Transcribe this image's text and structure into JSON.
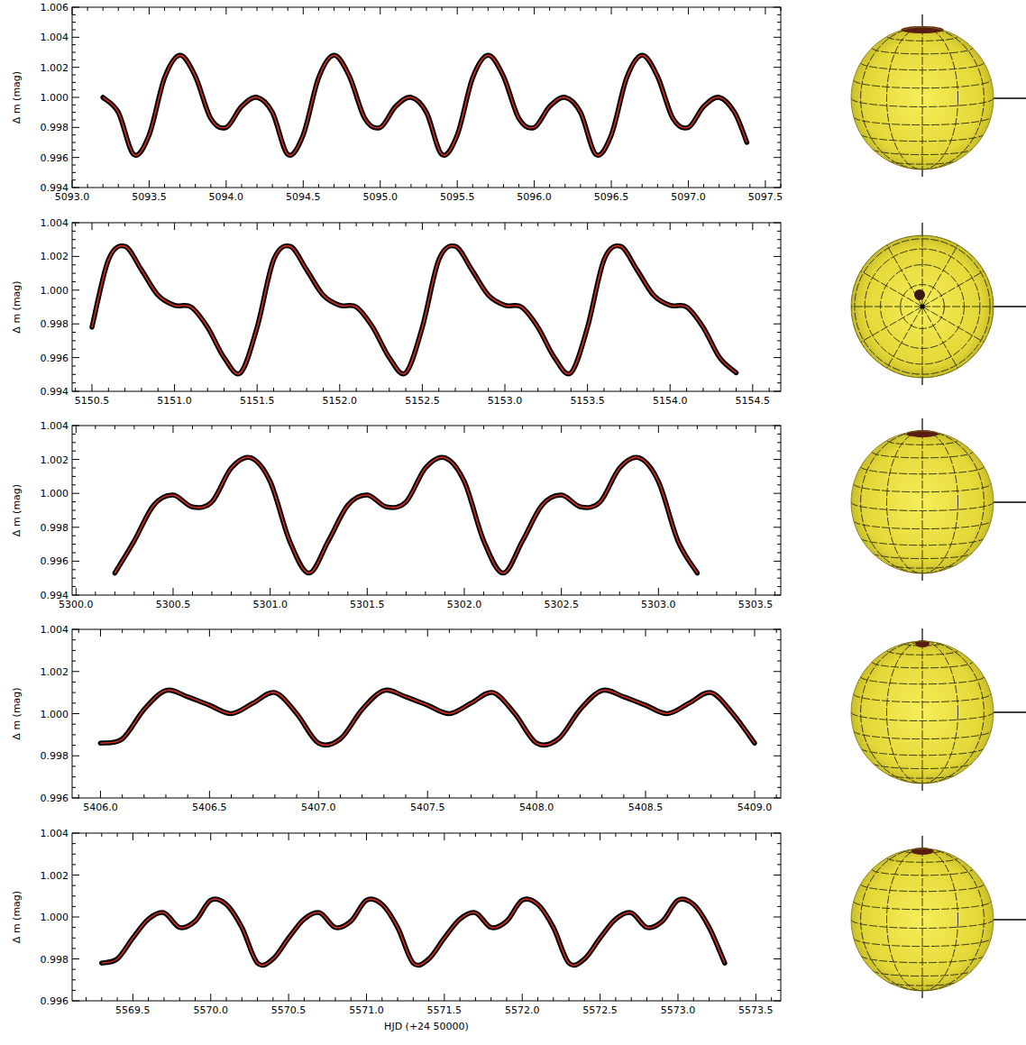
{
  "chart_data": [
    {
      "type": "line",
      "y_label": "Δ m (mag)",
      "xlim": [
        5093.0,
        5097.6
      ],
      "ylim": [
        0.994,
        1.006
      ],
      "xticks": [
        {
          "value": 5093.0,
          "label": "5093.0"
        },
        5093.5,
        {
          "value": 5094.0,
          "label": "5094.0"
        },
        5094.5,
        {
          "value": 5095.0,
          "label": "5095.0"
        },
        5095.5,
        {
          "value": 5096.0,
          "label": "5096.0"
        },
        5096.5,
        {
          "value": 5097.0,
          "label": "5097.0"
        },
        5097.5
      ],
      "yticks": [
        0.994,
        0.996,
        0.998,
        {
          "value": 1.0,
          "label": "1.000"
        },
        1.002,
        1.004,
        1.006
      ],
      "x": [
        5093.2,
        5093.3,
        5093.4,
        5093.5,
        5093.6,
        5093.7,
        5093.8,
        5093.9,
        5094.0,
        5094.1,
        5094.2,
        5094.3,
        5094.4,
        5094.5,
        5094.6,
        5094.7,
        5094.8,
        5094.9,
        5095.0,
        5095.1,
        5095.2,
        5095.3,
        5095.4,
        5095.5,
        5095.6,
        5095.7,
        5095.8,
        5095.9,
        5096.0,
        5096.1,
        5096.2,
        5096.3,
        5096.4,
        5096.5,
        5096.6,
        5096.7,
        5096.8,
        5096.9,
        5097.0,
        5097.1,
        5097.2,
        5097.3,
        5097.38
      ],
      "series": [
        {
          "color": "#d42a1e",
          "marker": "circle",
          "line_style": "solid",
          "values": [
            1.0,
            0.999,
            0.9962,
            0.9975,
            1.0013,
            1.0028,
            1.0014,
            0.9986,
            0.998,
            0.9994,
            1.0,
            0.999,
            0.9962,
            0.9975,
            1.0013,
            1.0028,
            1.0014,
            0.9986,
            0.998,
            0.9994,
            1.0,
            0.999,
            0.9962,
            0.9975,
            1.0013,
            1.0028,
            1.0014,
            0.9986,
            0.998,
            0.9994,
            1.0,
            0.999,
            0.9962,
            0.9975,
            1.0013,
            1.0028,
            1.0014,
            0.9986,
            0.998,
            0.9994,
            1.0,
            0.999,
            0.997
          ]
        }
      ]
    },
    {
      "type": "line",
      "y_label": "Δ m (mag)",
      "xlim": [
        5150.38,
        5154.67
      ],
      "ylim": [
        0.994,
        1.004
      ],
      "xticks": [
        5150.5,
        {
          "value": 5151.0,
          "label": "5151.0"
        },
        5151.5,
        {
          "value": 5152.0,
          "label": "5152.0"
        },
        5152.5,
        {
          "value": 5153.0,
          "label": "5153.0"
        },
        5153.5,
        {
          "value": 5154.0,
          "label": "5154.0"
        },
        5154.5
      ],
      "yticks": [
        0.994,
        0.996,
        0.998,
        {
          "value": 1.0,
          "label": "1.000"
        },
        1.002,
        1.004
      ],
      "x": [
        5150.5,
        5150.6,
        5150.7,
        5150.8,
        5150.9,
        5151.0,
        5151.1,
        5151.2,
        5151.3,
        5151.4,
        5151.5,
        5151.6,
        5151.7,
        5151.8,
        5151.9,
        5152.0,
        5152.1,
        5152.2,
        5152.3,
        5152.4,
        5152.5,
        5152.6,
        5152.7,
        5152.8,
        5152.9,
        5153.0,
        5153.1,
        5153.2,
        5153.3,
        5153.4,
        5153.5,
        5153.6,
        5153.7,
        5153.8,
        5153.9,
        5154.0,
        5154.1,
        5154.2,
        5154.3,
        5154.4
      ],
      "series": [
        {
          "color": "#d42a1e",
          "marker": "circle",
          "line_style": "solid",
          "values": [
            0.9978,
            1.0018,
            1.0026,
            1.0012,
            0.9997,
            0.9991,
            0.999,
            0.9978,
            0.996,
            0.9951,
            0.9978,
            1.0018,
            1.0026,
            1.0012,
            0.9997,
            0.9991,
            0.999,
            0.9978,
            0.996,
            0.9951,
            0.9978,
            1.0018,
            1.0026,
            1.0012,
            0.9997,
            0.9991,
            0.999,
            0.9978,
            0.996,
            0.9951,
            0.9978,
            1.0018,
            1.0026,
            1.0012,
            0.9997,
            0.9991,
            0.999,
            0.9978,
            0.996,
            0.9951
          ]
        }
      ]
    },
    {
      "type": "line",
      "y_label": "Δ m (mag)",
      "xlim": [
        5299.98,
        5303.63
      ],
      "ylim": [
        0.994,
        1.004
      ],
      "xticks": [
        {
          "value": 5300.0,
          "label": "5300.0"
        },
        5300.5,
        {
          "value": 5301.0,
          "label": "5301.0"
        },
        5301.5,
        {
          "value": 5302.0,
          "label": "5302.0"
        },
        5302.5,
        {
          "value": 5303.0,
          "label": "5303.0"
        },
        5303.5
      ],
      "yticks": [
        0.994,
        0.996,
        0.998,
        {
          "value": 1.0,
          "label": "1.000"
        },
        1.002,
        1.004
      ],
      "x": [
        5300.2,
        5300.3,
        5300.4,
        5300.5,
        5300.6,
        5300.7,
        5300.8,
        5300.9,
        5301.0,
        5301.1,
        5301.2,
        5301.3,
        5301.4,
        5301.5,
        5301.6,
        5301.7,
        5301.8,
        5301.9,
        5302.0,
        5302.1,
        5302.2,
        5302.3,
        5302.4,
        5302.5,
        5302.6,
        5302.7,
        5302.8,
        5302.9,
        5303.0,
        5303.1,
        5303.2
      ],
      "series": [
        {
          "color": "#d42a1e",
          "marker": "circle",
          "line_style": "solid",
          "values": [
            0.9953,
            0.9972,
            0.9993,
            0.9999,
            0.9992,
            0.9995,
            1.0015,
            1.0021,
            1.0007,
            0.9972,
            0.9953,
            0.9972,
            0.9993,
            0.9999,
            0.9992,
            0.9995,
            1.0015,
            1.0021,
            1.0007,
            0.9972,
            0.9953,
            0.9972,
            0.9993,
            0.9999,
            0.9992,
            0.9995,
            1.0015,
            1.0021,
            1.0007,
            0.9972,
            0.9953
          ]
        }
      ]
    },
    {
      "type": "line",
      "y_label": "Δ m (mag)",
      "xlim": [
        5405.87,
        5409.12
      ],
      "ylim": [
        0.996,
        1.004
      ],
      "xticks": [
        {
          "value": 5406.0,
          "label": "5406.0"
        },
        5406.5,
        {
          "value": 5407.0,
          "label": "5407.0"
        },
        5407.5,
        {
          "value": 5408.0,
          "label": "5408.0"
        },
        5408.5,
        {
          "value": 5409.0,
          "label": "5409.0"
        }
      ],
      "yticks": [
        0.996,
        0.998,
        {
          "value": 1.0,
          "label": "1.000"
        },
        1.002,
        1.004
      ],
      "x": [
        5406.0,
        5406.1,
        5406.2,
        5406.3,
        5406.4,
        5406.5,
        5406.6,
        5406.7,
        5406.8,
        5406.9,
        5407.0,
        5407.1,
        5407.2,
        5407.3,
        5407.4,
        5407.5,
        5407.6,
        5407.7,
        5407.8,
        5407.9,
        5408.0,
        5408.1,
        5408.2,
        5408.3,
        5408.4,
        5408.5,
        5408.6,
        5408.7,
        5408.8,
        5408.9,
        5409.0
      ],
      "series": [
        {
          "color": "#d42a1e",
          "marker": "circle",
          "line_style": "solid",
          "values": [
            0.9986,
            0.9988,
            1.0002,
            1.0011,
            1.0008,
            1.0004,
            1.0,
            1.0005,
            1.001,
            1.0,
            0.9986,
            0.9988,
            1.0002,
            1.0011,
            1.0008,
            1.0004,
            1.0,
            1.0005,
            1.001,
            1.0,
            0.9986,
            0.9988,
            1.0002,
            1.0011,
            1.0008,
            1.0004,
            1.0,
            1.0005,
            1.001,
            1.0,
            0.9986
          ]
        }
      ]
    },
    {
      "type": "line",
      "y_label": "Δ m (mag)",
      "x_label": "HJD (+24 50000)",
      "xlim": [
        5569.11,
        5573.66
      ],
      "ylim": [
        0.996,
        1.004
      ],
      "xticks": [
        5569.5,
        {
          "value": 5570.0,
          "label": "5570.0"
        },
        5570.5,
        {
          "value": 5571.0,
          "label": "5571.0"
        },
        5571.5,
        {
          "value": 5572.0,
          "label": "5572.0"
        },
        5572.5,
        {
          "value": 5573.0,
          "label": "5573.0"
        },
        5573.5
      ],
      "yticks": [
        0.996,
        0.998,
        {
          "value": 1.0,
          "label": "1.000"
        },
        1.002,
        1.004
      ],
      "x": [
        5569.3,
        5569.4,
        5569.5,
        5569.6,
        5569.7,
        5569.8,
        5569.9,
        5570.0,
        5570.1,
        5570.2,
        5570.3,
        5570.4,
        5570.5,
        5570.6,
        5570.7,
        5570.8,
        5570.9,
        5571.0,
        5571.1,
        5571.2,
        5571.3,
        5571.4,
        5571.5,
        5571.6,
        5571.7,
        5571.8,
        5571.9,
        5572.0,
        5572.1,
        5572.2,
        5572.3,
        5572.4,
        5572.5,
        5572.6,
        5572.7,
        5572.8,
        5572.9,
        5573.0,
        5573.1,
        5573.2,
        5573.3
      ],
      "series": [
        {
          "color": "#d42a1e",
          "marker": "circle",
          "line_style": "solid",
          "values": [
            0.9978,
            0.998,
            0.999,
            0.9999,
            1.0002,
            0.9995,
            0.9998,
            1.0008,
            1.0006,
            0.9995,
            0.9978,
            0.998,
            0.999,
            0.9999,
            1.0002,
            0.9995,
            0.9998,
            1.0008,
            1.0006,
            0.9995,
            0.9978,
            0.998,
            0.999,
            0.9999,
            1.0002,
            0.9995,
            0.9998,
            1.0008,
            1.0006,
            0.9995,
            0.9978,
            0.998,
            0.999,
            0.9999,
            1.0002,
            0.9995,
            0.9998,
            1.0008,
            1.0006,
            0.9995,
            0.9978
          ]
        }
      ]
    }
  ]
}
